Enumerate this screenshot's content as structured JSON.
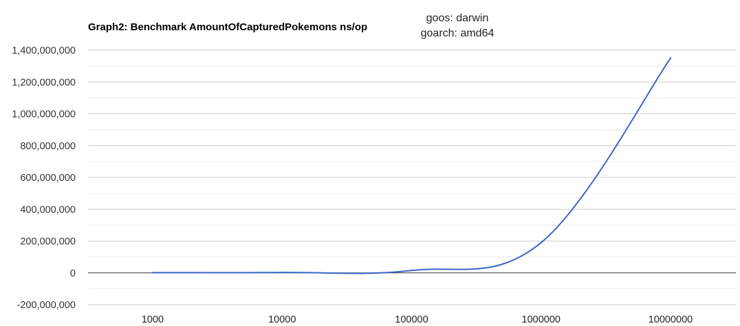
{
  "chart_data": {
    "type": "line",
    "title": "Graph2: Benchmark AmountOfCapturedPokemons ns/op",
    "annotation": [
      "goos: darwin",
      "goarch: amd64"
    ],
    "xlabel": "",
    "ylabel": "",
    "x_scale": "log",
    "categories": [
      "1000",
      "10000",
      "100000",
      "1000000",
      "10000000"
    ],
    "ylim": [
      -200000000,
      1400000000
    ],
    "yticks": [
      {
        "value": 1400000000,
        "label": "1,400,000,000"
      },
      {
        "value": 1200000000,
        "label": "1,200,000,000"
      },
      {
        "value": 1000000000,
        "label": "1,000,000,000"
      },
      {
        "value": 800000000,
        "label": "800,000,000"
      },
      {
        "value": 600000000,
        "label": "600,000,000"
      },
      {
        "value": 400000000,
        "label": "400,000,000"
      },
      {
        "value": 200000000,
        "label": "200,000,000"
      },
      {
        "value": 0,
        "label": "0"
      },
      {
        "value": -200000000,
        "label": "-200,000,000"
      }
    ],
    "grid": true,
    "legend": "none",
    "series": [
      {
        "color": "#3a66c6",
        "x": [
          1000,
          10000,
          100000,
          1000000,
          10000000
        ],
        "values": [
          1500000,
          2500000,
          15000000,
          190000000,
          1350000000
        ]
      }
    ]
  }
}
